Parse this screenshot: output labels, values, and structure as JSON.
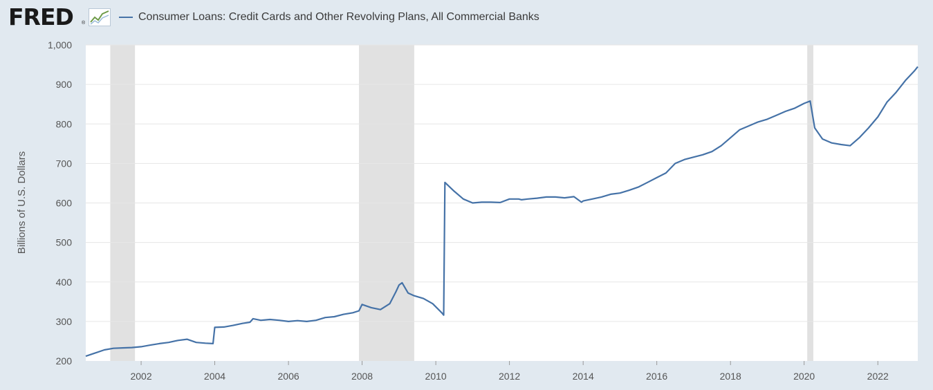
{
  "header": {
    "logo": "FRED",
    "logo_reg": "®",
    "logo_icon": "chart-line-icon"
  },
  "chart_data": {
    "type": "line",
    "title": "",
    "xlabel": "",
    "ylabel": "Billions of U.S. Dollars",
    "xlim": [
      "2000-07-01",
      "2023-02-01"
    ],
    "ylim": [
      200,
      1000
    ],
    "yticks": [
      200,
      300,
      400,
      500,
      600,
      700,
      800,
      900,
      1000
    ],
    "ytick_labels": [
      "200",
      "300",
      "400",
      "500",
      "600",
      "700",
      "800",
      "900",
      "1,000"
    ],
    "xticks": [
      "2002",
      "2004",
      "2006",
      "2008",
      "2010",
      "2012",
      "2014",
      "2016",
      "2018",
      "2020",
      "2022"
    ],
    "grid": true,
    "legend": "top-left",
    "recessions": [
      {
        "start": "2001-03-01",
        "end": "2001-11-01"
      },
      {
        "start": "2007-12-01",
        "end": "2009-06-01"
      },
      {
        "start": "2020-02-01",
        "end": "2020-04-01"
      }
    ],
    "series": [
      {
        "name": "Consumer Loans: Credit Cards and Other Revolving Plans, All Commercial Banks",
        "color": "#4572a7",
        "x": [
          "2000-07-01",
          "2000-10-01",
          "2001-01-01",
          "2001-04-01",
          "2001-07-01",
          "2001-10-01",
          "2002-01-01",
          "2002-04-01",
          "2002-07-01",
          "2002-10-01",
          "2003-01-01",
          "2003-04-01",
          "2003-07-01",
          "2003-10-01",
          "2003-12-15",
          "2004-01-01",
          "2004-04-01",
          "2004-07-01",
          "2004-10-01",
          "2004-12-15",
          "2005-01-15",
          "2005-04-01",
          "2005-07-01",
          "2005-10-01",
          "2006-01-01",
          "2006-04-01",
          "2006-07-01",
          "2006-10-01",
          "2007-01-01",
          "2007-04-01",
          "2007-07-01",
          "2007-10-01",
          "2007-12-01",
          "2008-01-01",
          "2008-04-01",
          "2008-07-01",
          "2008-10-01",
          "2008-12-01",
          "2009-01-01",
          "2009-02-01",
          "2009-04-01",
          "2009-06-01",
          "2009-09-01",
          "2009-12-01",
          "2010-03-01",
          "2010-03-20",
          "2010-04-01",
          "2010-07-01",
          "2010-10-01",
          "2011-01-01",
          "2011-04-01",
          "2011-07-01",
          "2011-10-01",
          "2012-01-01",
          "2012-04-01",
          "2012-05-01",
          "2012-07-01",
          "2012-10-01",
          "2013-01-01",
          "2013-04-01",
          "2013-07-01",
          "2013-10-01",
          "2013-12-15",
          "2014-01-01",
          "2014-04-01",
          "2014-07-01",
          "2014-10-01",
          "2015-01-01",
          "2015-04-01",
          "2015-07-01",
          "2015-10-01",
          "2016-01-01",
          "2016-04-01",
          "2016-07-01",
          "2016-10-01",
          "2017-01-01",
          "2017-04-01",
          "2017-07-01",
          "2017-10-01",
          "2018-01-01",
          "2018-04-01",
          "2018-07-01",
          "2018-10-01",
          "2019-01-01",
          "2019-04-01",
          "2019-07-01",
          "2019-10-01",
          "2020-01-01",
          "2020-03-01",
          "2020-04-15",
          "2020-07-01",
          "2020-10-01",
          "2021-01-01",
          "2021-04-01",
          "2021-07-01",
          "2021-10-01",
          "2022-01-01",
          "2022-04-01",
          "2022-07-01",
          "2022-10-01",
          "2023-01-01",
          "2023-02-01"
        ],
        "values": [
          212,
          220,
          228,
          232,
          233,
          234,
          236,
          240,
          244,
          247,
          252,
          255,
          247,
          245,
          244,
          285,
          286,
          290,
          295,
          298,
          307,
          303,
          305,
          303,
          300,
          302,
          300,
          303,
          310,
          312,
          318,
          322,
          327,
          343,
          335,
          330,
          345,
          375,
          392,
          398,
          372,
          365,
          358,
          345,
          322,
          316,
          652,
          630,
          610,
          600,
          602,
          602,
          601,
          610,
          610,
          608,
          610,
          612,
          615,
          615,
          613,
          616,
          602,
          605,
          610,
          615,
          622,
          625,
          632,
          640,
          652,
          664,
          676,
          700,
          710,
          716,
          722,
          730,
          745,
          765,
          785,
          795,
          805,
          812,
          822,
          832,
          840,
          852,
          858,
          790,
          762,
          752,
          748,
          745,
          765,
          790,
          818,
          855,
          880,
          910,
          935,
          945
        ]
      }
    ]
  }
}
